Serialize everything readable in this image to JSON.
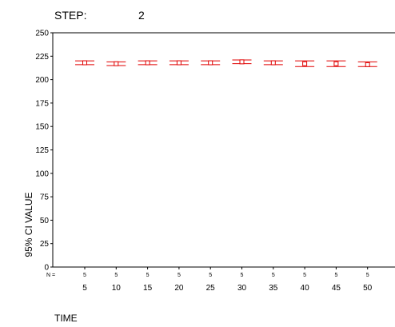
{
  "header": {
    "step_label": "STEP:",
    "step_value": "2"
  },
  "chart_data": {
    "type": "error-bar",
    "xlabel": "TIME",
    "ylabel": "95% CI VALUE",
    "n_label": "N =",
    "categories": [
      "5",
      "10",
      "15",
      "20",
      "25",
      "30",
      "35",
      "40",
      "45",
      "50"
    ],
    "n_values": [
      "5",
      "5",
      "5",
      "5",
      "5",
      "5",
      "5",
      "5",
      "5",
      "5"
    ],
    "means": [
      218,
      217,
      218,
      218,
      218,
      219,
      218,
      217,
      217,
      216
    ],
    "ci_lower": [
      216,
      215,
      216,
      216,
      216,
      217,
      216,
      214,
      214,
      214
    ],
    "ci_upper": [
      220,
      219,
      220,
      220,
      220,
      221,
      220,
      220,
      220,
      219
    ],
    "ylim": [
      0,
      250
    ],
    "yticks": [
      "0",
      "25",
      "50",
      "75",
      "100",
      "125",
      "150",
      "175",
      "200",
      "225",
      "250"
    ],
    "color": "#e00000",
    "grid": false
  }
}
